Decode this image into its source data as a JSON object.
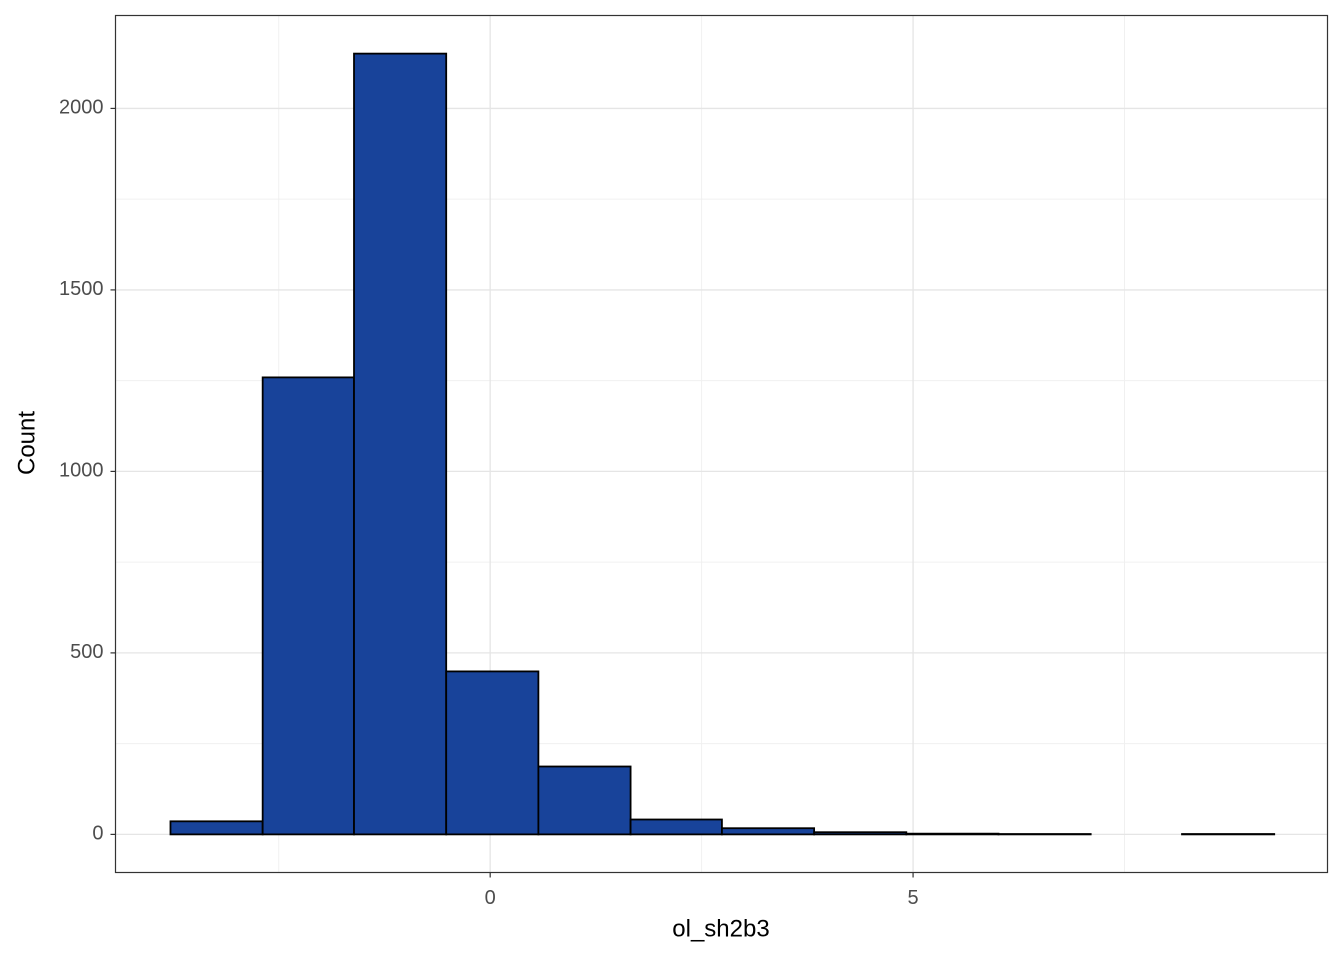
{
  "chart_data": {
    "type": "histogram",
    "x_label": "ol_sh2b3",
    "y_label": "Count",
    "bins": [
      -3.78,
      -2.69,
      -1.61,
      -0.52,
      0.57,
      1.66,
      2.74,
      3.83,
      4.92,
      6.01,
      7.1,
      8.18,
      9.27
    ],
    "counts": [
      36,
      1259,
      2151,
      449,
      187,
      41,
      17,
      6,
      2,
      1,
      0,
      1
    ],
    "color": "#18439a",
    "xlim": [
      -4.43,
      9.9
    ],
    "xticks": [
      0,
      5
    ],
    "ylim": [
      -105,
      2256
    ],
    "yticks": [
      0,
      500,
      1000,
      1500,
      2000
    ],
    "grid": true
  }
}
